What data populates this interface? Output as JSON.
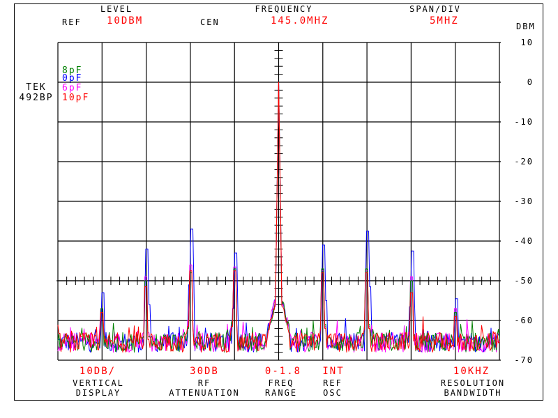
{
  "instrument": {
    "model_line1": "TEK",
    "model_line2": "492BP"
  },
  "header": {
    "level_title": "LEVEL",
    "ref_label": "REF",
    "ref_value": "10DBM",
    "frequency_title": "FREQUENCY",
    "cen_label": "CEN",
    "cen_value": "145.0MHZ",
    "span_title": "SPAN/DIV",
    "span_value": "5MHZ"
  },
  "footer": {
    "vertical": {
      "value": "10DB/",
      "line1": "VERTICAL",
      "line2": "DISPLAY"
    },
    "rf": {
      "value": "30DB",
      "line1": "RF",
      "line2": "ATTENUATION"
    },
    "freq": {
      "value": "0-1.8",
      "line1": "FREQ",
      "line2": "RANGE"
    },
    "ref": {
      "value": "INT",
      "line1": "REF",
      "line2": "OSC"
    },
    "res": {
      "value": "10KHZ",
      "line1": "RESOLUTION",
      "line2": "BANDWIDTH"
    }
  },
  "colors": {
    "frame": "#000000",
    "value_text": "#ff0000"
  },
  "chart_data": {
    "type": "line",
    "title": "Spectrum analyzer display, CEN 145.0 MHz, SPAN 5 MHz/div",
    "xlabel": "Frequency (MHz)",
    "ylabel": "DBM",
    "x_range_mhz": [
      120,
      170
    ],
    "ylim": [
      -70,
      10
    ],
    "yticks": [
      "10",
      "0",
      "-10",
      "-20",
      "-30",
      "-40",
      "-50",
      "-60",
      "-70"
    ],
    "grid": {
      "x_divisions": 10,
      "y_divisions": 8,
      "center_graticule_ticks": true
    },
    "legend": [
      {
        "name": "8pF",
        "color": "#008000"
      },
      {
        "name": "0pF",
        "color": "#0000ff"
      },
      {
        "name": "6pF",
        "color": "#ff00ff"
      },
      {
        "name": "10pF",
        "color": "#ff0000"
      }
    ],
    "noise_floor_dbm": -65.5,
    "carrier": {
      "freq_mhz": 145.0,
      "level_dbm": 0
    },
    "spurs_freq_mhz": [
      125,
      130,
      135,
      140,
      150,
      155,
      160,
      165
    ],
    "series": [
      {
        "name": "0pF",
        "color": "#0000ff",
        "spur_levels_dbm": [
          -53,
          -42,
          -37,
          -43,
          -41,
          -37.5,
          -42.5,
          -54.5
        ]
      },
      {
        "name": "8pF",
        "color": "#008000",
        "spur_levels_dbm": [
          -57,
          -50,
          -48,
          -47,
          -47,
          -47,
          -50,
          -58
        ]
      },
      {
        "name": "6pF",
        "color": "#ff00ff",
        "spur_levels_dbm": [
          -57,
          -49,
          -46,
          -46.5,
          -47.5,
          -47.5,
          -49,
          -57
        ]
      },
      {
        "name": "10pF",
        "color": "#ff0000",
        "spur_levels_dbm": [
          -58,
          -51.5,
          -47.5,
          -47.5,
          -48,
          -48,
          -53,
          -59
        ]
      }
    ]
  }
}
